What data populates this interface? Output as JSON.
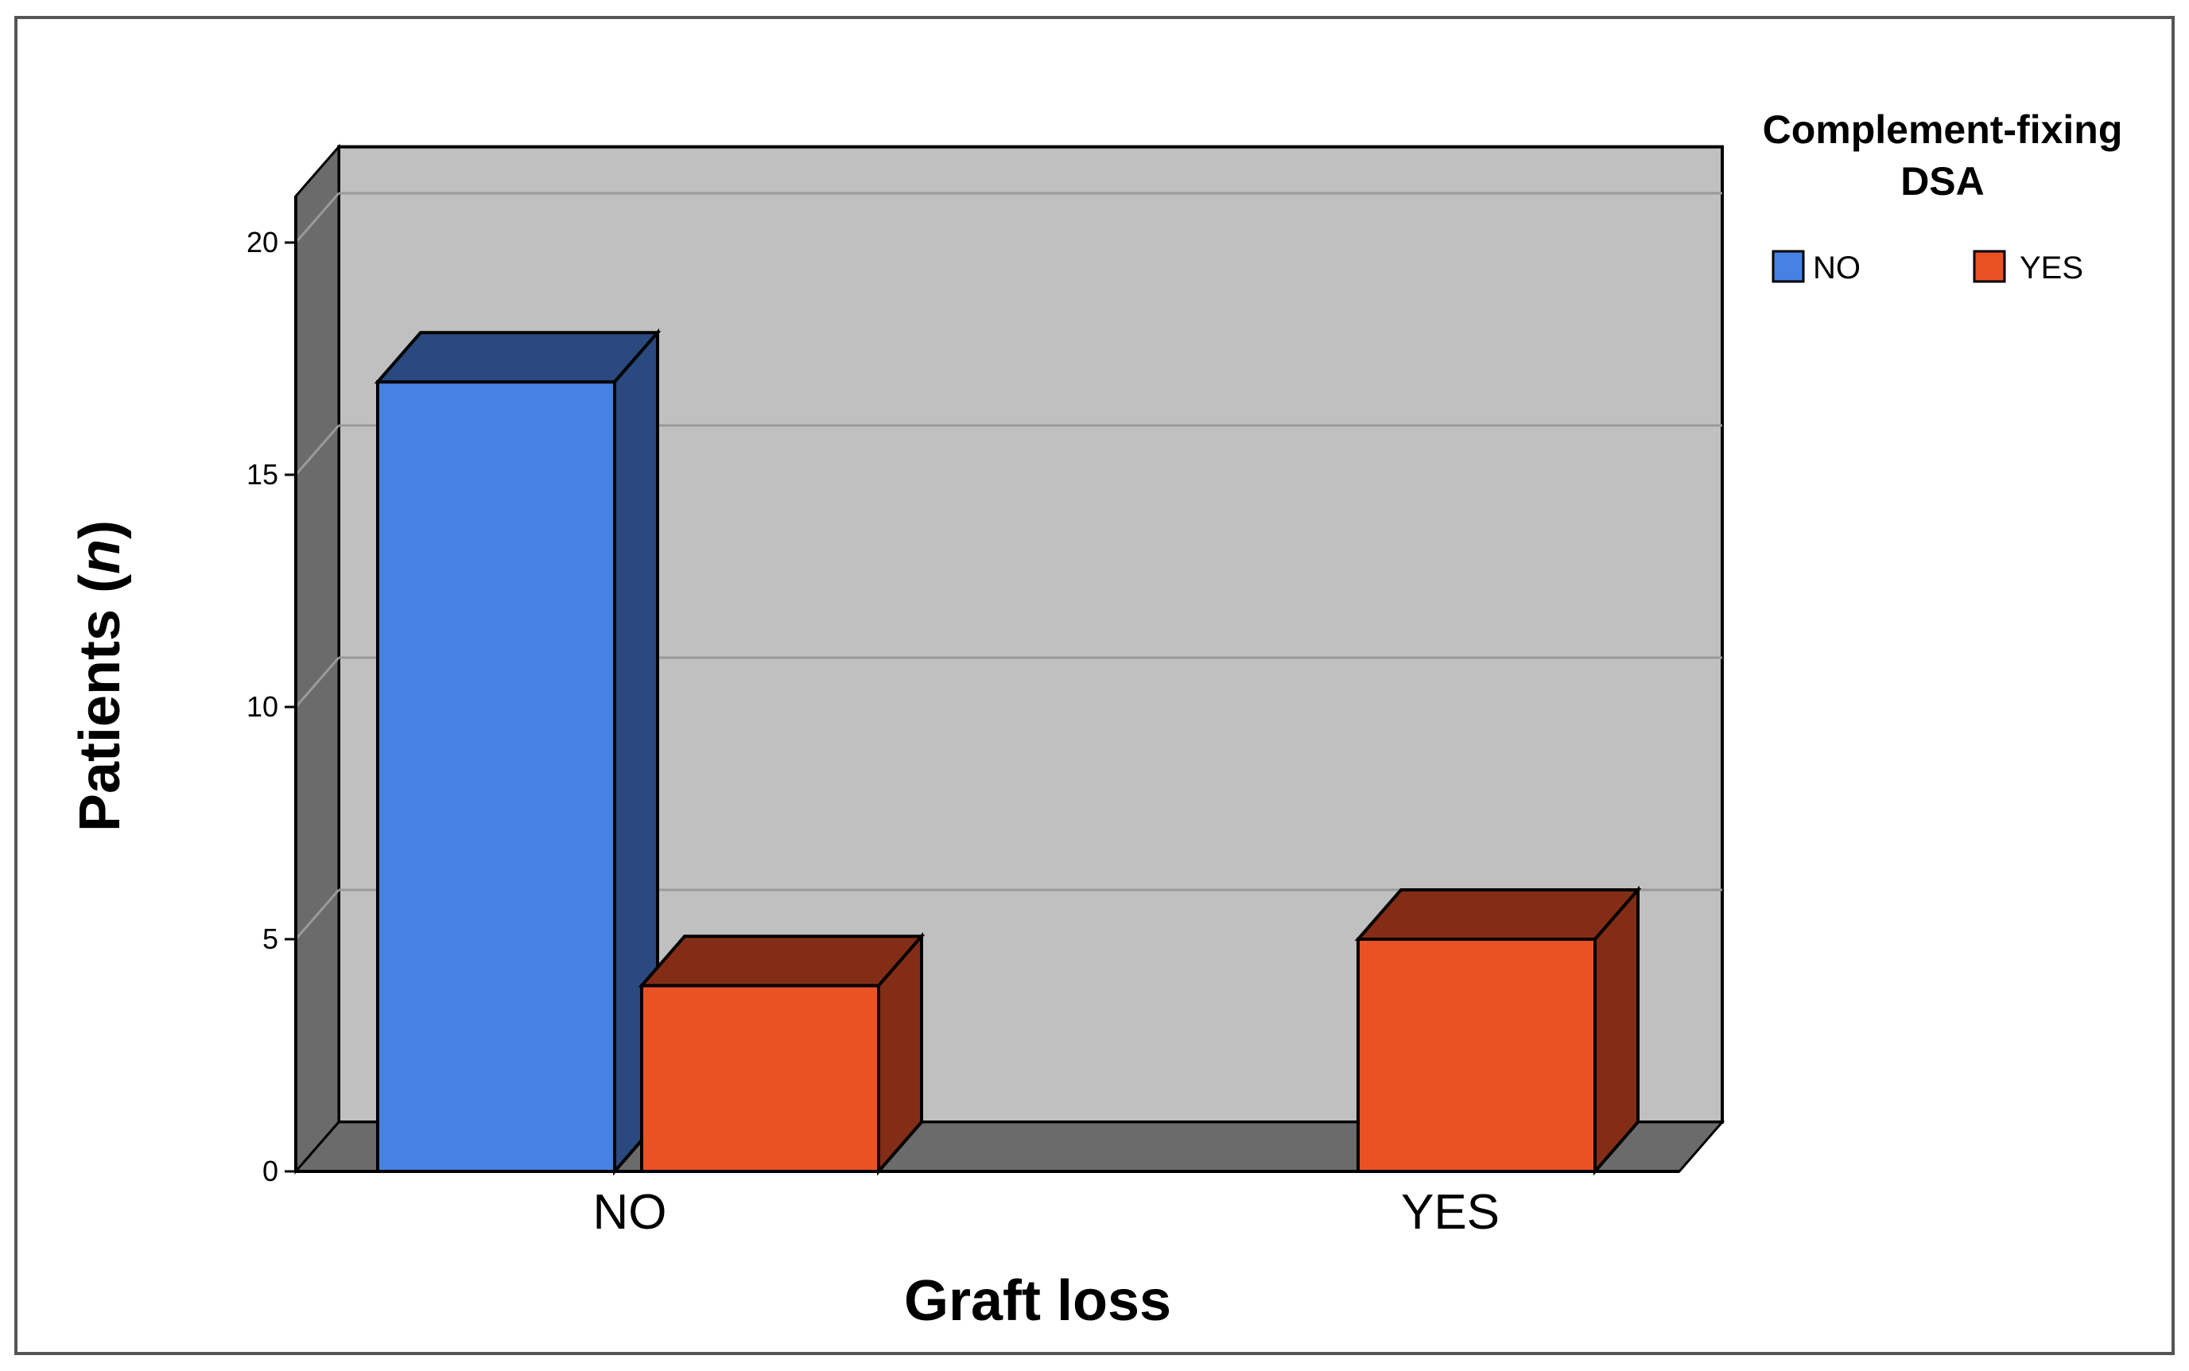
{
  "chart_data": {
    "type": "bar",
    "style": "3d",
    "categories": [
      "NO",
      "YES"
    ],
    "series": [
      {
        "name": "NO",
        "values": [
          17,
          0
        ],
        "color": "#4682E2",
        "top_color": "#29497F",
        "side_color": "#29497F"
      },
      {
        "name": "YES",
        "values": [
          4,
          5
        ],
        "color": "#EA5125",
        "top_color": "#842D16",
        "side_color": "#842D16"
      }
    ],
    "xlabel": "Graft loss",
    "ylabel_prefix": "Patients (",
    "ylabel_italic": "n",
    "ylabel_suffix": ")",
    "legend_title_lines": [
      "Complement-fixing",
      "DSA"
    ],
    "legend_position": "top-right",
    "ylim": [
      0,
      21
    ],
    "yticks": [
      0,
      5,
      10,
      15,
      20
    ],
    "ytick_labels": [
      "0",
      "5",
      "10",
      "15",
      "20"
    ],
    "grid": true,
    "colors": {
      "plot_background": "#C0C0C0",
      "wall_side": "#6B6B6B",
      "floor": "#6B6B6B",
      "gridline": "#9A9A9A",
      "frame": "#555555"
    }
  }
}
